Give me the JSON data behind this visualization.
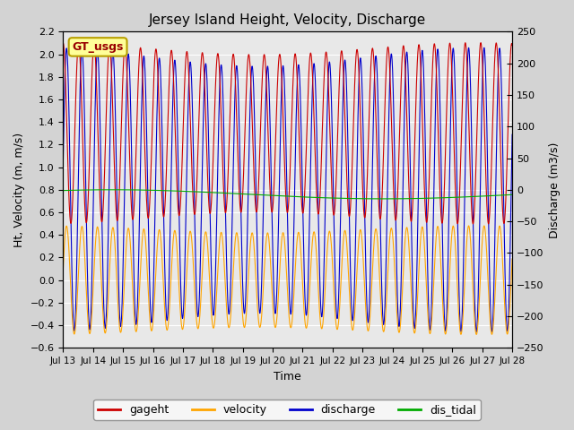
{
  "title": "Jersey Island Height, Velocity, Discharge",
  "xlabel": "Time",
  "ylabel_left": "Ht, Velocity (m, m/s)",
  "ylabel_right": "Discharge (m3/s)",
  "ylim_left": [
    -0.6,
    2.2
  ],
  "ylim_right": [
    -250,
    250
  ],
  "x_start_day": 13,
  "x_end_day": 28,
  "x_ticks": [
    13,
    14,
    15,
    16,
    17,
    18,
    19,
    20,
    21,
    22,
    23,
    24,
    25,
    26,
    27,
    28
  ],
  "background_color": "#d3d3d3",
  "plot_bg_color": "#e8e8e8",
  "legend_label": "GT_usgs",
  "legend_box_color": "#ffff99",
  "legend_box_edge": "#b8a000",
  "colors": {
    "gageht": "#cc0000",
    "velocity": "#ffa500",
    "discharge": "#0000cc",
    "dis_tidal": "#00aa00"
  },
  "n_points": 3000,
  "tidal_period_hours": 12.4,
  "spring_neap_days": 14.5,
  "gageht_mean": 1.3,
  "gageht_amp": 0.75,
  "vel_amp": 0.45,
  "disc_amp_m3s": 210,
  "dis_tidal_mean": 0.76,
  "dis_tidal_amp": 0.04
}
